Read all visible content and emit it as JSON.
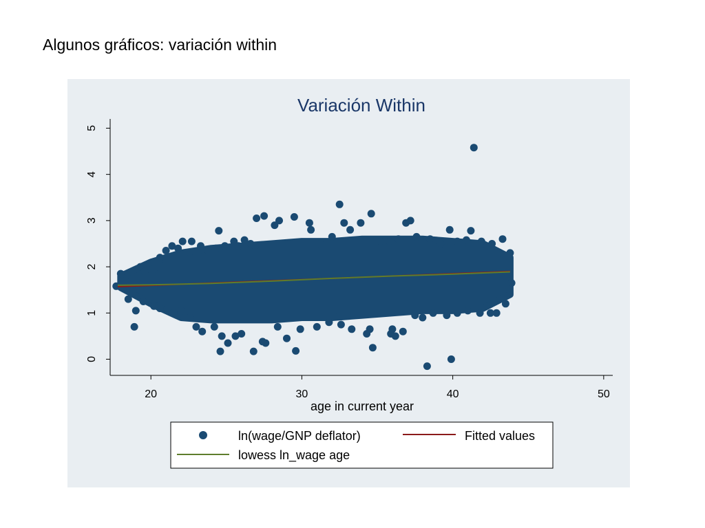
{
  "slide": {
    "title": "Algunos gráficos: variación within"
  },
  "chart_data": {
    "type": "scatter",
    "title": "Variación Within",
    "xlabel": "age in current year",
    "ylabel": "",
    "xlim": [
      17.3,
      50.6
    ],
    "ylim": [
      -0.35,
      5.2
    ],
    "xticks": [
      20,
      30,
      40,
      50
    ],
    "yticks": [
      0,
      1,
      2,
      3,
      4,
      5
    ],
    "grid": false,
    "legend_position": "bottom",
    "background": "#e9eef2",
    "colors": {
      "points": "#1a4a72",
      "fitted": "#8b1a1a",
      "lowess": "#5e7d2c"
    },
    "band": {
      "x": [
        18,
        20,
        22,
        24,
        26,
        28,
        30,
        32,
        34,
        36,
        38,
        40,
        42,
        43.8
      ],
      "y_low": [
        1.55,
        1.2,
        0.9,
        0.85,
        0.85,
        0.85,
        0.9,
        0.9,
        0.95,
        1.0,
        1.05,
        1.05,
        1.1,
        1.4
      ],
      "y_high": [
        1.8,
        2.1,
        2.3,
        2.4,
        2.45,
        2.5,
        2.55,
        2.55,
        2.6,
        2.6,
        2.6,
        2.55,
        2.5,
        2.2
      ]
    },
    "series": [
      {
        "name": "ln(wage/GNP deflator)",
        "type": "scatter",
        "points": [
          [
            18.0,
            1.85
          ],
          [
            17.7,
            1.58
          ],
          [
            18.3,
            1.7
          ],
          [
            18.8,
            1.45
          ],
          [
            18.5,
            1.3
          ],
          [
            19.0,
            1.05
          ],
          [
            18.9,
            0.7
          ],
          [
            19.3,
            2.0
          ],
          [
            19.6,
            1.9
          ],
          [
            20.2,
            1.95
          ],
          [
            20.6,
            2.2
          ],
          [
            21.0,
            2.35
          ],
          [
            21.4,
            2.45
          ],
          [
            21.8,
            2.4
          ],
          [
            22.1,
            2.55
          ],
          [
            22.7,
            2.55
          ],
          [
            23.3,
            2.45
          ],
          [
            23.8,
            2.35
          ],
          [
            24.3,
            2.4
          ],
          [
            24.5,
            2.78
          ],
          [
            24.9,
            2.45
          ],
          [
            25.5,
            2.55
          ],
          [
            25.8,
            2.45
          ],
          [
            26.2,
            2.58
          ],
          [
            26.6,
            2.5
          ],
          [
            26.9,
            2.45
          ],
          [
            27.5,
            3.1
          ],
          [
            27.0,
            3.05
          ],
          [
            28.2,
            2.9
          ],
          [
            28.5,
            3.0
          ],
          [
            29.5,
            3.08
          ],
          [
            30.5,
            2.95
          ],
          [
            30.6,
            2.8
          ],
          [
            31.2,
            2.5
          ],
          [
            32.0,
            2.65
          ],
          [
            32.5,
            3.35
          ],
          [
            32.8,
            2.95
          ],
          [
            33.2,
            2.8
          ],
          [
            33.9,
            2.95
          ],
          [
            34.6,
            3.15
          ],
          [
            35.2,
            2.55
          ],
          [
            35.8,
            2.55
          ],
          [
            36.4,
            2.6
          ],
          [
            36.9,
            2.95
          ],
          [
            37.2,
            3.0
          ],
          [
            37.6,
            2.65
          ],
          [
            38.2,
            2.55
          ],
          [
            38.5,
            2.6
          ],
          [
            39.2,
            2.5
          ],
          [
            39.8,
            2.8
          ],
          [
            40.3,
            2.55
          ],
          [
            40.9,
            2.58
          ],
          [
            41.2,
            2.78
          ],
          [
            41.9,
            2.55
          ],
          [
            42.6,
            2.5
          ],
          [
            43.3,
            2.6
          ],
          [
            43.8,
            2.3
          ],
          [
            43.9,
            1.65
          ],
          [
            43.5,
            1.2
          ],
          [
            42.9,
            1.0
          ],
          [
            42.5,
            1.0
          ],
          [
            41.8,
            1.0
          ],
          [
            41.0,
            1.05
          ],
          [
            40.3,
            1.0
          ],
          [
            39.6,
            0.95
          ],
          [
            38.7,
            1.0
          ],
          [
            38.0,
            0.9
          ],
          [
            37.5,
            0.95
          ],
          [
            36.7,
            0.6
          ],
          [
            36.2,
            0.5
          ],
          [
            35.9,
            0.55
          ],
          [
            36.0,
            0.65
          ],
          [
            34.5,
            0.65
          ],
          [
            34.7,
            0.25
          ],
          [
            34.3,
            0.55
          ],
          [
            33.3,
            0.65
          ],
          [
            32.6,
            0.75
          ],
          [
            31.8,
            0.8
          ],
          [
            31.0,
            0.7
          ],
          [
            29.9,
            0.65
          ],
          [
            29.6,
            0.18
          ],
          [
            29.0,
            0.45
          ],
          [
            28.4,
            0.7
          ],
          [
            27.6,
            0.35
          ],
          [
            27.4,
            0.38
          ],
          [
            26.8,
            0.17
          ],
          [
            26.0,
            0.55
          ],
          [
            25.6,
            0.5
          ],
          [
            25.1,
            0.35
          ],
          [
            24.7,
            0.5
          ],
          [
            24.6,
            0.17
          ],
          [
            24.2,
            0.7
          ],
          [
            23.4,
            0.6
          ],
          [
            23.0,
            0.7
          ],
          [
            22.6,
            0.9
          ],
          [
            22.0,
            1.05
          ],
          [
            21.5,
            1.0
          ],
          [
            21.1,
            1.1
          ],
          [
            20.6,
            1.1
          ],
          [
            20.2,
            1.15
          ],
          [
            19.8,
            1.3
          ],
          [
            19.5,
            1.25
          ],
          [
            41.4,
            4.58
          ],
          [
            38.3,
            -0.15
          ],
          [
            39.9,
            0.0
          ]
        ]
      },
      {
        "name": "Fitted values",
        "type": "line",
        "x": [
          17.8,
          43.8
        ],
        "y": [
          1.57,
          1.9
        ]
      },
      {
        "name": "lowess ln_wage age",
        "type": "line",
        "x": [
          17.8,
          20,
          24,
          28,
          32,
          36,
          40,
          43.8
        ],
        "y": [
          1.6,
          1.61,
          1.64,
          1.69,
          1.75,
          1.8,
          1.84,
          1.89
        ]
      }
    ]
  }
}
